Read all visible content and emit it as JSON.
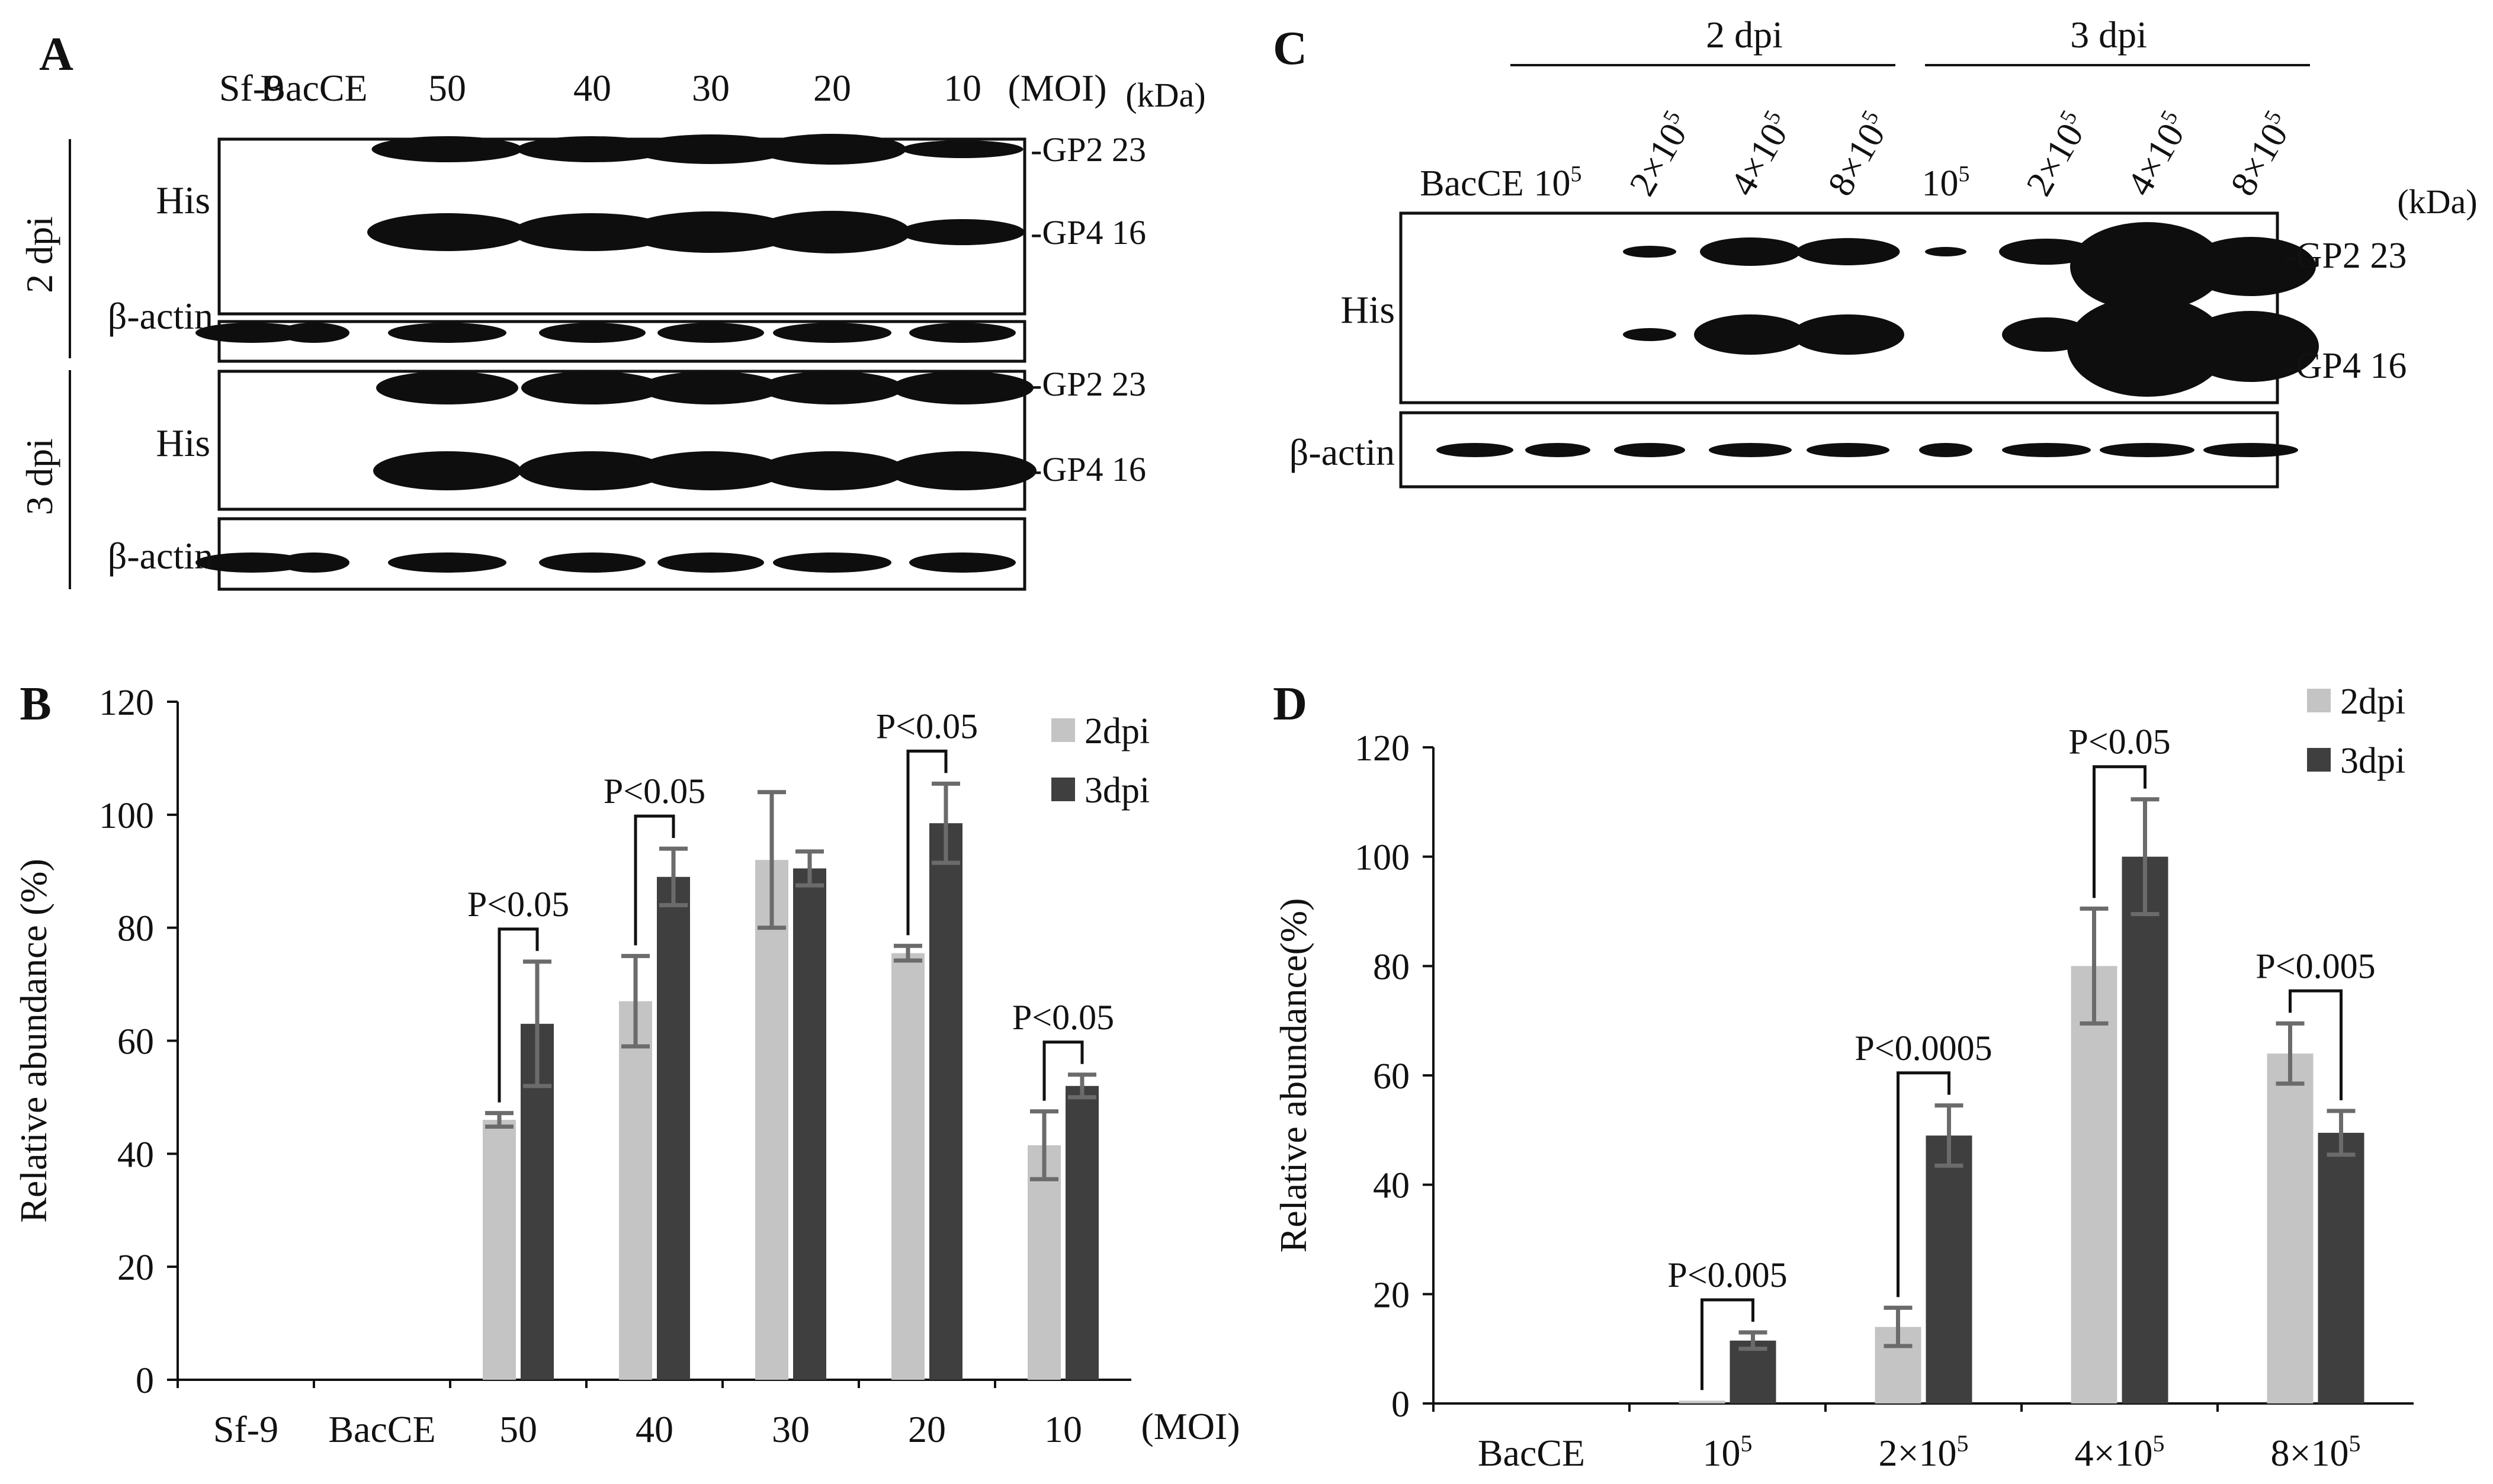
{
  "colors": {
    "series_2dpi": "#c4c4c4",
    "series_3dpi": "#3f3f3f",
    "error_bar": "#6b6b6b",
    "band": "#0e0e0e"
  },
  "panel_A": {
    "letter": "A",
    "lanes": [
      "Sf-9",
      "BacCE",
      "50",
      "40",
      "30",
      "20",
      "10"
    ],
    "moi_unit": "(MOI)",
    "kda_label": "(kDa)",
    "groups": [
      {
        "label": "2 dpi",
        "row_labels": [
          "His",
          "β-actin"
        ]
      },
      {
        "label": "3 dpi",
        "row_labels": [
          "His",
          "β-actin"
        ]
      }
    ],
    "markers": [
      "-GP2 23",
      "-GP4 16",
      "-GP2 23",
      "-GP4 16"
    ]
  },
  "panel_C": {
    "letter": "C",
    "groups": [
      "2 dpi",
      "3 dpi"
    ],
    "lanes": [
      "BacCE",
      "10",
      "2×10",
      "4×10",
      "8×10",
      "10",
      "2×10",
      "4×10",
      "8×10"
    ],
    "lane_superscripts": [
      "",
      "5",
      "5",
      "5",
      "5",
      "5",
      "5",
      "5",
      "5"
    ],
    "kda_label": "(kDa)",
    "row_labels": [
      "His",
      "β-actin"
    ],
    "markers": [
      "-GP2 23",
      "-GP4 16"
    ]
  },
  "chart_data": [
    {
      "panel": "B",
      "type": "bar",
      "ylabel": "Relative abundance (%)",
      "ylim": [
        0,
        120
      ],
      "yticks": [
        0,
        20,
        40,
        60,
        80,
        100,
        120
      ],
      "categories": [
        "Sf-9",
        "BacCE",
        "50",
        "40",
        "30",
        "20",
        "10"
      ],
      "category_superscripts": [
        "",
        "",
        "",
        "",
        "",
        "",
        ""
      ],
      "xunit": "(MOI)",
      "series": [
        {
          "name": "2dpi",
          "values": [
            0,
            0,
            46,
            67,
            92,
            75.5,
            41.5
          ],
          "errors": [
            0,
            0,
            1.2,
            8,
            12,
            1.3,
            6
          ]
        },
        {
          "name": "3dpi",
          "values": [
            0,
            0,
            63,
            89,
            90.5,
            98.5,
            52
          ],
          "errors": [
            0,
            0,
            11,
            5,
            3,
            7,
            2
          ]
        }
      ],
      "annotations": [
        {
          "category": "50",
          "text": "P<0.05"
        },
        {
          "category": "40",
          "text": "P<0.05"
        },
        {
          "category": "20",
          "text": "P<0.05"
        },
        {
          "category": "10",
          "text": "P<0.05"
        }
      ],
      "legend_position": "top-right",
      "grid": false
    },
    {
      "panel": "D",
      "type": "bar",
      "ylabel": "Relative abundance(%)",
      "ylim": [
        0,
        120
      ],
      "yticks": [
        0,
        20,
        40,
        60,
        80,
        100,
        120
      ],
      "categories": [
        "BacCE",
        "10",
        "2×10",
        "4×10",
        "8×10"
      ],
      "category_superscripts": [
        "",
        "5",
        "5",
        "5",
        "5"
      ],
      "xunit": "",
      "series": [
        {
          "name": "2dpi",
          "values": [
            0,
            0.5,
            14,
            80,
            64
          ],
          "errors": [
            0,
            0,
            3.5,
            10.5,
            5.5
          ]
        },
        {
          "name": "3dpi",
          "values": [
            0,
            11.5,
            49,
            100,
            49.5
          ],
          "errors": [
            0,
            1.5,
            5.5,
            10.5,
            4
          ]
        }
      ],
      "annotations": [
        {
          "category": "10",
          "text": "P<0.005"
        },
        {
          "category": "2×10",
          "text": "P<0.0005"
        },
        {
          "category": "4×10",
          "text": "P<0.05"
        },
        {
          "category": "8×10",
          "text": "P<0.005"
        }
      ],
      "legend_position": "top-right",
      "grid": false
    }
  ]
}
